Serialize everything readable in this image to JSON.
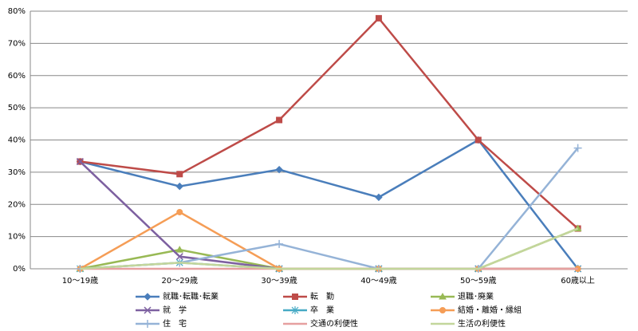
{
  "chart_data": {
    "type": "line",
    "categories": [
      "10～19歳",
      "20～29歳",
      "30～39歳",
      "40～49歳",
      "50～59歳",
      "60歳以上"
    ],
    "ylim": [
      0,
      80
    ],
    "yticks": [
      {
        "value": 0,
        "label": "0%"
      },
      {
        "value": 10,
        "label": "10%"
      },
      {
        "value": 20,
        "label": "20%"
      },
      {
        "value": 30,
        "label": "30%"
      },
      {
        "value": 40,
        "label": "40%"
      },
      {
        "value": 50,
        "label": "50%"
      },
      {
        "value": 60,
        "label": "60%"
      },
      {
        "value": 70,
        "label": "70%"
      },
      {
        "value": 80,
        "label": "80%"
      }
    ],
    "grid": true,
    "legend": "bottom",
    "series": [
      {
        "name": "就職･転職･転業",
        "color": "#4a7ebb",
        "marker": "diamond",
        "values": [
          33.3,
          25.6,
          30.8,
          22.2,
          40,
          0
        ]
      },
      {
        "name": "転　勤",
        "color": "#be4b48",
        "marker": "square",
        "values": [
          33.3,
          29.4,
          46.2,
          77.8,
          40,
          12.5
        ]
      },
      {
        "name": "退職･廃業",
        "color": "#98b954",
        "marker": "triangle",
        "values": [
          0,
          5.9,
          0,
          0,
          0,
          12.5
        ]
      },
      {
        "name": "就　学",
        "color": "#7d60a0",
        "marker": "x",
        "values": [
          33.3,
          3.8,
          0,
          0,
          0,
          0
        ]
      },
      {
        "name": "卒　業",
        "color": "#46aac5",
        "marker": "star",
        "values": [
          0,
          1.9,
          0,
          0,
          0,
          0
        ]
      },
      {
        "name": "結婚・離婚・縁組",
        "color": "#f59d56",
        "marker": "circle",
        "values": [
          0,
          17.6,
          0,
          0,
          0,
          0
        ]
      },
      {
        "name": "住　宅",
        "color": "#95b3d7",
        "marker": "plus",
        "values": [
          0,
          1.9,
          7.7,
          0,
          0,
          37.5
        ]
      },
      {
        "name": "交通の利便性",
        "color": "#e6a0a0",
        "marker": "none",
        "values": [
          0,
          0,
          0,
          0,
          0,
          0
        ]
      },
      {
        "name": "生活の利便性",
        "color": "#c3d69b",
        "marker": "none",
        "values": [
          0,
          1.9,
          0,
          0,
          0,
          12.5
        ]
      }
    ]
  }
}
